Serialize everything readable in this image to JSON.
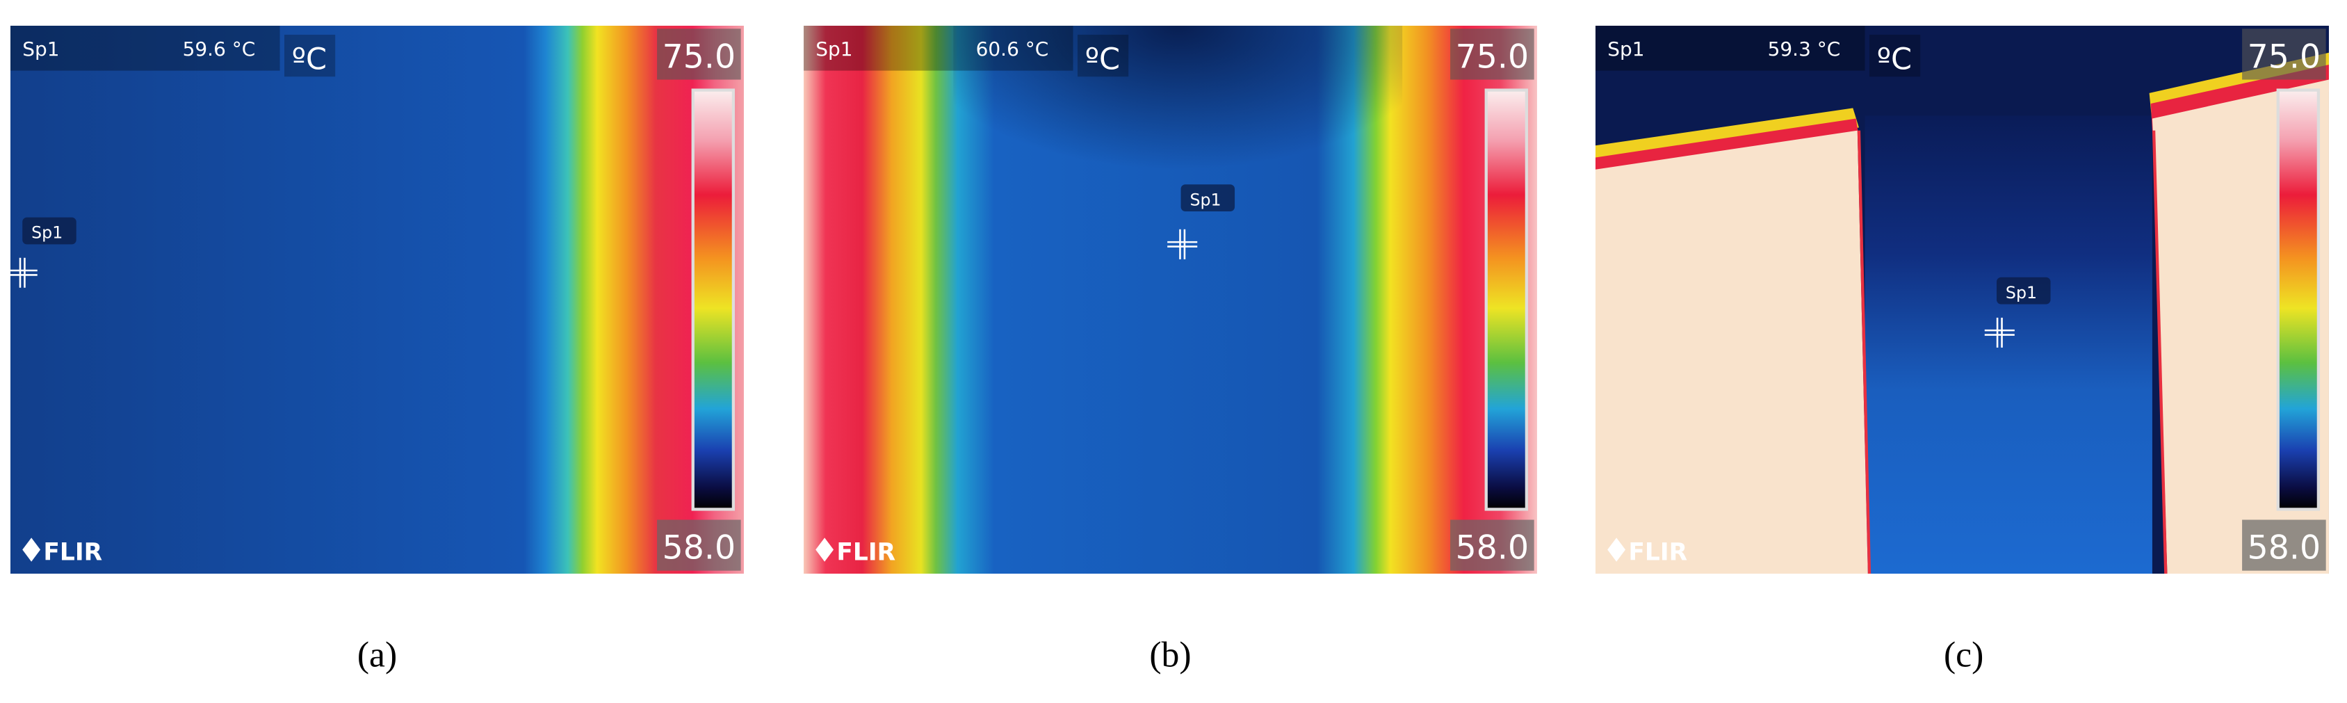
{
  "panels": [
    {
      "spot_name": "Sp1",
      "spot_temperature": "59.6 °C",
      "unit": "ºC",
      "scale_max": "75.0",
      "scale_min": "58.0",
      "logo": "FLIR",
      "spot_marker": "Sp1",
      "caption": "(a)"
    },
    {
      "spot_name": "Sp1",
      "spot_temperature": "60.6 °C",
      "unit": "ºC",
      "scale_max": "75.0",
      "scale_min": "58.0",
      "logo": "FLIR",
      "spot_marker": "Sp1",
      "caption": "(b)"
    },
    {
      "spot_name": "Sp1",
      "spot_temperature": "59.3 °C",
      "unit": "ºC",
      "scale_max": "75.0",
      "scale_min": "58.0",
      "logo": "FLIR",
      "spot_marker": "Sp1",
      "caption": "(c)"
    }
  ]
}
